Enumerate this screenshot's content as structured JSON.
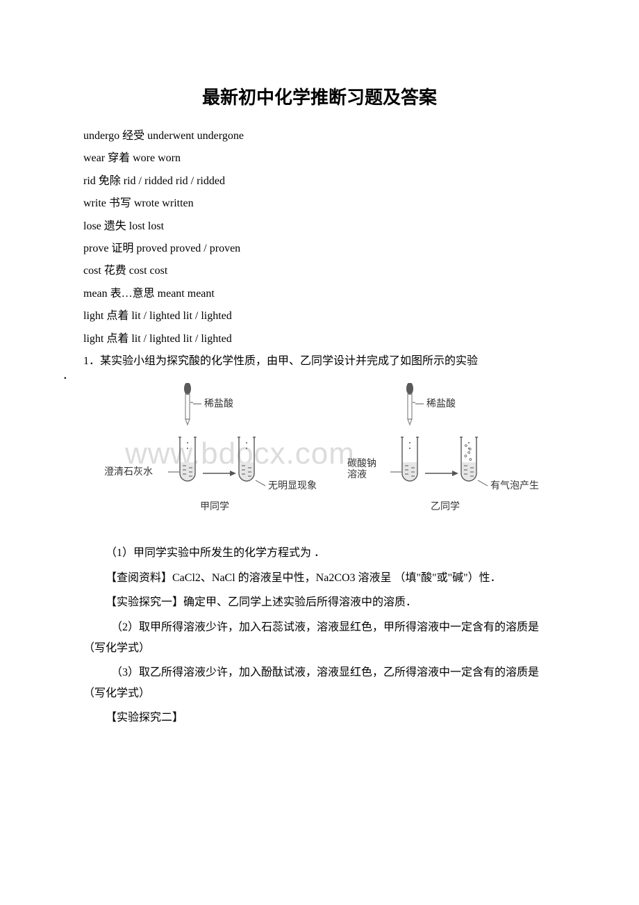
{
  "title": "最新初中化学推断习题及答案",
  "vocab": [
    "undergo 经受 underwent undergone",
    "wear 穿着 wore worn",
    "rid 免除 rid / ridded rid / ridded",
    "write 书写 wrote written",
    "lose 遗失 lost lost",
    "prove 证明 proved proved / proven",
    "cost 花费 cost cost",
    "mean 表…意思 meant meant",
    "light 点着 lit / lighted lit / lighted",
    "light 点着 lit / lighted lit / lighted"
  ],
  "q1_intro": "1．某实验小组为探究酸的化学性质，由甲、乙同学设计并完成了如图所示的实验",
  "dot": "．",
  "watermark": "www.bdocx.com",
  "diagram": {
    "colors": {
      "stroke": "#555555",
      "text": "#333333",
      "dropper_outline": "#888888",
      "dropper_bulb": "#5a5a5a",
      "liquid": "#e6e6e6"
    },
    "labels": {
      "dropper_left": "稀盐酸",
      "dropper_right": "稀盐酸",
      "left_in": "澄清石灰水",
      "left_out": "无明显现象",
      "left_caption": "甲同学",
      "right_in": "碳酸钠\n溶液",
      "right_out": "有气泡产生",
      "right_caption": "乙同学"
    },
    "font_size": 14
  },
  "paras": [
    "（1）甲同学实验中所发生的化学方程式为 ．",
    "【查阅资料】CaCl2、NaCl 的溶液呈中性，Na2CO3 溶液呈 （填\"酸\"或\"碱\"）性．",
    "【实验探究一】确定甲、乙同学上述实验后所得溶液中的溶质．",
    "　（2）取甲所得溶液少许，加入石蕊试液，溶液显红色，甲所得溶液中一定含有的溶质是 （写化学式）",
    "　（3）取乙所得溶液少许，加入酚酞试液，溶液显红色，乙所得溶液中一定含有的溶质是 （写化学式）",
    "【实验探究二】"
  ]
}
